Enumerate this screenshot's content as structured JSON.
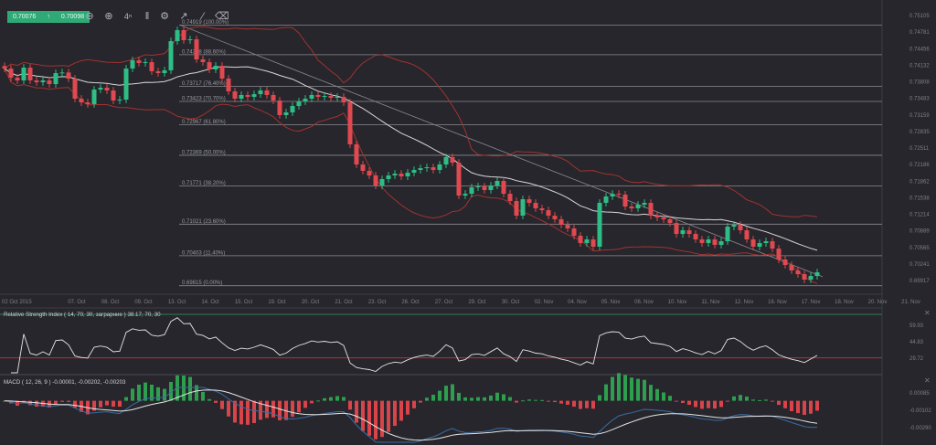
{
  "toolbar": {
    "bid": "0.70076",
    "direction_icon": "arrow-up-icon",
    "ask": "0.70098",
    "tools": [
      "zoom-out-icon",
      "zoom-in-icon",
      "crosshair-icon",
      "candle-type-icon",
      "gear-icon",
      "indicators-icon",
      "draw-line-icon",
      "eraser-icon"
    ]
  },
  "colors": {
    "background": "#26262c",
    "up": "#2ebd85",
    "down": "#e0494f",
    "bollinger": "#a3332f",
    "sma": "#d9d9d9",
    "fib": "#8a8a90",
    "rsi_high": "#2e7d4f",
    "rsi_low": "#b03636",
    "macd": "#e6e6e6",
    "signal": "#3a6ea5"
  },
  "chart_data": [
    {
      "type": "candlestick",
      "symbol_quote": "0.70076",
      "x_tick_labels": [
        "02 Oct 2015",
        "07. Oct",
        "08. Oct",
        "09. Oct",
        "13. Oct",
        "14. Oct",
        "15. Oct",
        "19. Oct",
        "20. Oct",
        "21. Oct",
        "23. Oct",
        "26. Oct",
        "27. Oct",
        "29. Oct",
        "30. Oct",
        "02. Nov",
        "04. Nov",
        "05. Nov",
        "06. Nov",
        "10. Nov",
        "11. Nov",
        "12. Nov",
        "16. Nov",
        "17. Nov",
        "18. Nov",
        "20. Nov",
        "21. Nov"
      ],
      "y_tick_labels": [
        "0.75105",
        "0.74781",
        "0.74456",
        "0.74132",
        "0.73808",
        "0.73483",
        "0.73159",
        "0.72835",
        "0.72511",
        "0.72186",
        "0.71862",
        "0.71538",
        "0.71214",
        "0.70889",
        "0.70565",
        "0.70241",
        "0.69917"
      ],
      "ylim": [
        0.69917,
        0.75105
      ],
      "overlays": [
        "Bollinger Bands (20, 2)",
        "SMA 20"
      ],
      "fibonacci": [
        {
          "price": "0.74919",
          "pct": "100.00%"
        },
        {
          "price": "0.74338",
          "pct": "88.60%"
        },
        {
          "price": "0.73717",
          "pct": "76.40%"
        },
        {
          "price": "0.73423",
          "pct": "70.70%"
        },
        {
          "price": "0.72967",
          "pct": "61.80%"
        },
        {
          "price": "0.72369",
          "pct": "50.00%"
        },
        {
          "price": "0.71771",
          "pct": "38.20%"
        },
        {
          "price": "0.71021",
          "pct": "23.60%"
        },
        {
          "price": "0.70403",
          "pct": "11.40%"
        },
        {
          "price": "0.69815",
          "pct": "0.00%"
        }
      ],
      "trendline": {
        "from_price": 0.74919,
        "to_price": 0.6999
      },
      "close": [
        0.74067,
        0.73888,
        0.73835,
        0.74085,
        0.73835,
        0.73799,
        0.73835,
        0.73763,
        0.73978,
        0.7399,
        0.73871,
        0.73477,
        0.73405,
        0.7337,
        0.73656,
        0.73692,
        0.73638,
        0.73441,
        0.73459,
        0.74067,
        0.74228,
        0.74175,
        0.74193,
        0.74014,
        0.73978,
        0.74032,
        0.74604,
        0.74819,
        0.74622,
        0.7464,
        0.74246,
        0.74193,
        0.74049,
        0.74121,
        0.73871,
        0.7362,
        0.73477,
        0.73549,
        0.73513,
        0.73566,
        0.73638,
        0.73549,
        0.73441,
        0.73155,
        0.73209,
        0.73334,
        0.73423,
        0.73477,
        0.73549,
        0.73513,
        0.73531,
        0.73495,
        0.73513,
        0.73405,
        0.72583,
        0.72189,
        0.72064,
        0.71974,
        0.71777,
        0.71903,
        0.71974,
        0.7201,
        0.71956,
        0.72028,
        0.72082,
        0.72117,
        0.72135,
        0.72082,
        0.72189,
        0.72332,
        0.72225,
        0.71581,
        0.71616,
        0.71742,
        0.7176,
        0.71688,
        0.71777,
        0.71867,
        0.71616,
        0.71473,
        0.71187,
        0.71509,
        0.71438,
        0.7133,
        0.71294,
        0.71187,
        0.71116,
        0.71008,
        0.70937,
        0.70794,
        0.7065,
        0.70722,
        0.70579,
        0.71438,
        0.71563,
        0.71616,
        0.716,
        0.71366,
        0.7133,
        0.71402,
        0.71438,
        0.71187,
        0.71151,
        0.71116,
        0.71044,
        0.70829,
        0.70901,
        0.70829,
        0.70722,
        0.7065,
        0.70722,
        0.70615,
        0.70686,
        0.70972,
        0.71008,
        0.70901,
        0.70722,
        0.70579,
        0.7065,
        0.70686,
        0.70543,
        0.70328,
        0.70221,
        0.70114,
        0.70042,
        0.69935,
        0.70006,
        0.70078
      ]
    },
    {
      "type": "line",
      "title": "Relative Strength Index ( 14, 70, 30, заграрние ) 38.17, 70, 30",
      "y_tick_labels": [
        "59.93",
        "44.83",
        "29.72"
      ],
      "levels": [
        70,
        30
      ]
    },
    {
      "type": "bar",
      "title": "MACD ( 12, 26, 9 ) -0.00001, -0.00202, -0.00203",
      "y_tick_labels": [
        "0.00085",
        "-0.00102",
        "-0.00290"
      ]
    }
  ]
}
